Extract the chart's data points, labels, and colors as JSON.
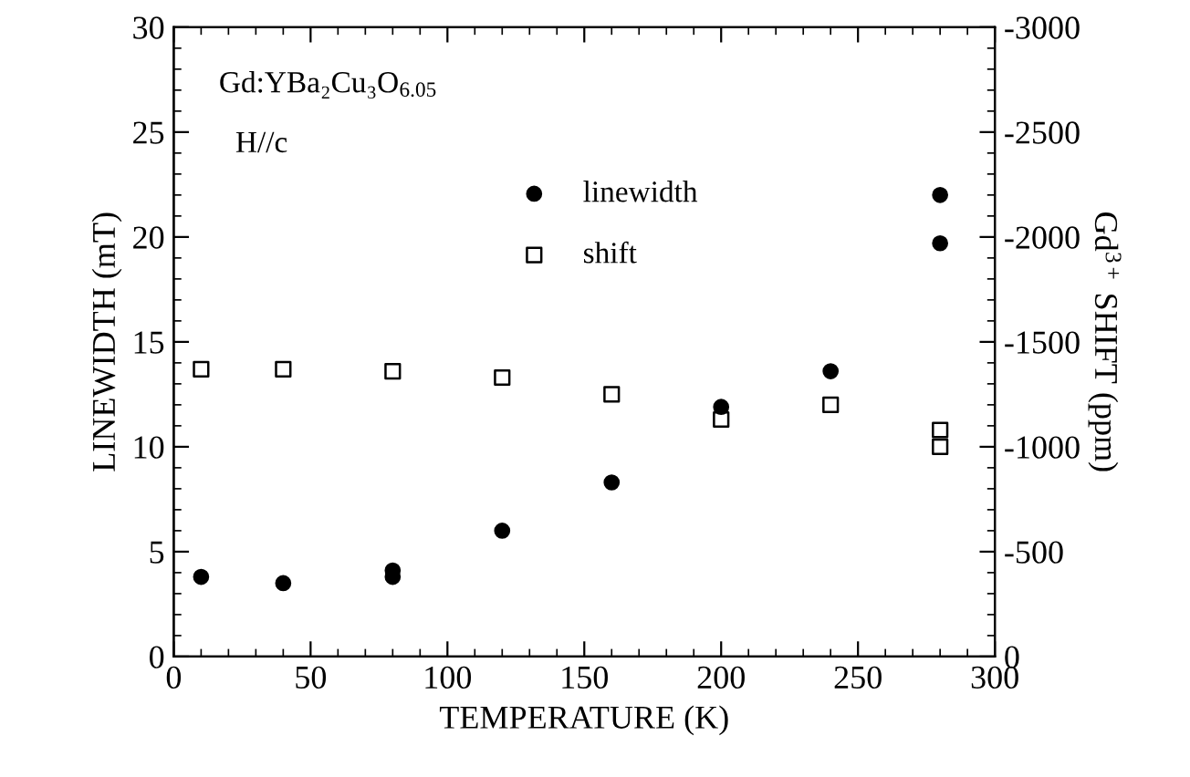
{
  "chart_data": {
    "type": "scatter",
    "xlabel": "TEMPERATURE (K)",
    "ylabel": "LINEWIDTH (mT)",
    "y2label": "Gd$^{3+}$ SHIFT (ppm)",
    "annotations": [
      "Gd:YBa₂Cu₃O$_{6.05}$",
      "H//c"
    ],
    "xlim": [
      0,
      300
    ],
    "xticks": [
      0,
      50,
      100,
      150,
      200,
      250,
      300
    ],
    "ylim": [
      0,
      30
    ],
    "yticks": [
      0,
      5,
      10,
      15,
      20,
      25,
      30
    ],
    "y2lim": [
      0,
      -3000
    ],
    "y2ticks": [
      0,
      -500,
      -1000,
      -1500,
      -2000,
      -2500,
      -3000
    ],
    "legend": "top",
    "grid": false,
    "series": [
      {
        "name": "linewidth",
        "color": "#000000",
        "marker": "circle",
        "x": [
          10,
          40,
          80,
          80,
          120,
          160,
          200,
          240,
          280,
          280
        ],
        "values": [
          3.8,
          3.5,
          4.1,
          3.8,
          6.0,
          8.3,
          11.9,
          13.6,
          22.0,
          19.7
        ]
      },
      {
        "name": "shift",
        "color": "#000000",
        "marker": "square",
        "axis": "y2",
        "x": [
          10,
          40,
          80,
          120,
          160,
          200,
          240,
          280,
          280
        ],
        "values": [
          -1370,
          -1370,
          -1360,
          -1330,
          -1250,
          -1130,
          -1200,
          -1080,
          -1000
        ]
      }
    ]
  }
}
